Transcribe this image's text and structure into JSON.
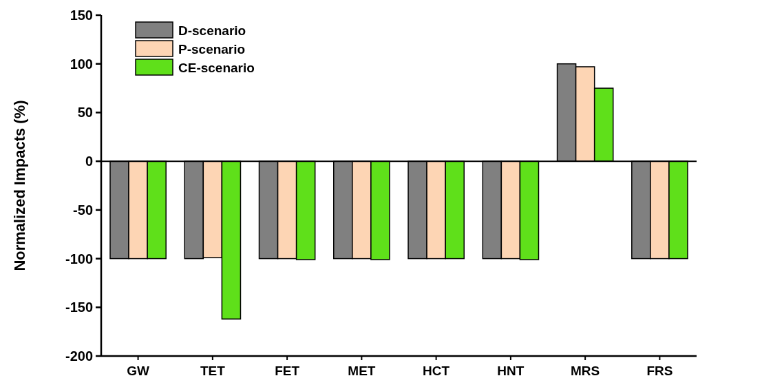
{
  "chart_data": {
    "type": "bar",
    "ylabel": "Normalized Impacts (%)",
    "categories": [
      "GW",
      "TET",
      "FET",
      "MET",
      "HCT",
      "HNT",
      "MRS",
      "FRS"
    ],
    "series": [
      {
        "name": "D-scenario",
        "color": "#808080",
        "values": [
          -100,
          -100,
          -100,
          -100,
          -100,
          -100,
          100,
          -100
        ]
      },
      {
        "name": "P-scenario",
        "color": "#fdd5b4",
        "values": [
          -100,
          -99,
          -100,
          -100,
          -100,
          -100,
          97,
          -100
        ]
      },
      {
        "name": "CE-scenario",
        "color": "#5fe01a",
        "values": [
          -100,
          -162,
          -101,
          -101,
          -100,
          -101,
          75,
          -100
        ]
      }
    ],
    "ylim": [
      -200,
      150
    ],
    "yticks": [
      -200,
      -150,
      -100,
      -50,
      0,
      50,
      100,
      150
    ],
    "ref_lines": [
      {
        "axis": "y",
        "value": 0,
        "color": "#000000"
      }
    ],
    "legend": "top left"
  }
}
